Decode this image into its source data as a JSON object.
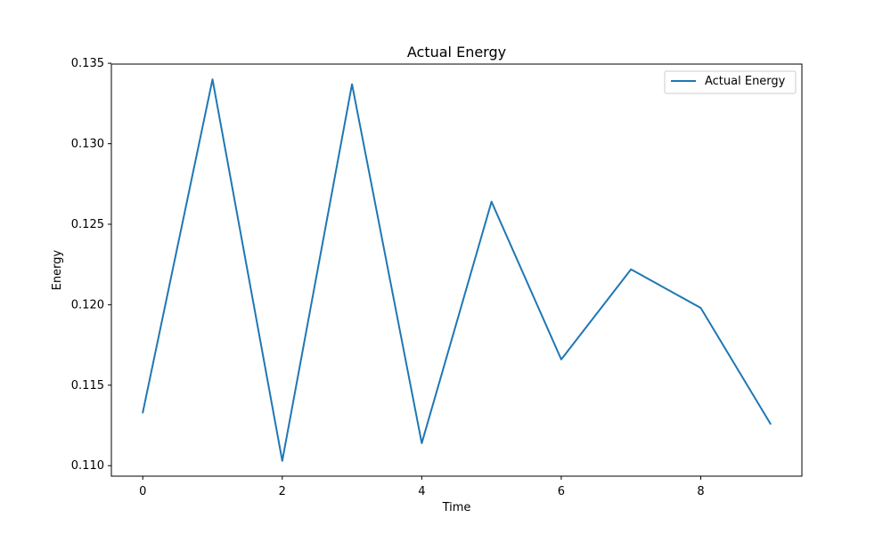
{
  "chart_data": {
    "type": "line",
    "title": "Actual Energy",
    "xlabel": "Time",
    "ylabel": "Energy",
    "xlim": [
      -0.45,
      9.45
    ],
    "ylim": [
      0.10935,
      0.13495
    ],
    "xticks": [
      0,
      2,
      4,
      6,
      8
    ],
    "xtick_labels": [
      "0",
      "2",
      "4",
      "6",
      "8"
    ],
    "yticks": [
      0.11,
      0.115,
      0.12,
      0.125,
      0.13,
      0.135
    ],
    "ytick_labels": [
      "0.110",
      "0.115",
      "0.120",
      "0.125",
      "0.130",
      "0.135"
    ],
    "grid": false,
    "legend": {
      "placement": "top-right",
      "entries": [
        "Actual Energy"
      ]
    },
    "colors": {
      "series": "#1f77b4",
      "axes": "#000000",
      "legend_border": "#cccccc"
    },
    "series": [
      {
        "name": "Actual Energy",
        "x": [
          0,
          1,
          2,
          3,
          4,
          5,
          6,
          7,
          8,
          9
        ],
        "y": [
          0.1133,
          0.134,
          0.1103,
          0.1337,
          0.1114,
          0.1264,
          0.1166,
          0.1222,
          0.1198,
          0.1126
        ]
      }
    ]
  }
}
